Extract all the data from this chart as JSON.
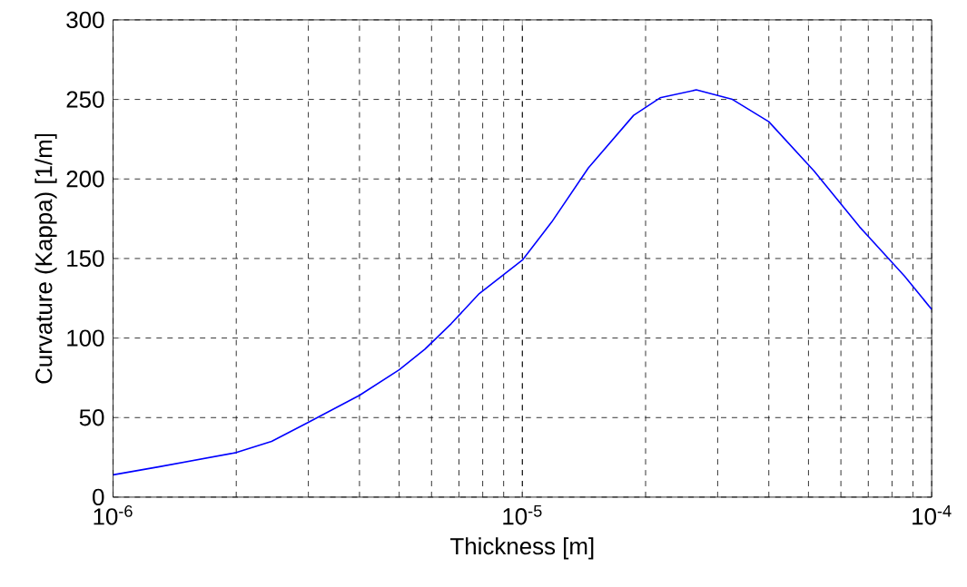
{
  "chart_data": {
    "type": "line",
    "xlabel": "Thickness [m]",
    "ylabel": "Curvature (Kappa) [1/m]",
    "x": [
      1e-06,
      1.29e-06,
      2e-06,
      2.44e-06,
      3e-06,
      4e-06,
      5e-06,
      5.78e-06,
      6.7e-06,
      7.85e-06,
      1e-05,
      1.18e-05,
      1.45e-05,
      1.87e-05,
      2.17e-05,
      2.66e-05,
      3.26e-05,
      4e-05,
      5.16e-05,
      6.66e-05,
      8.58e-05,
      0.0001
    ],
    "series": [
      {
        "color": "#0000ff",
        "values": [
          14,
          19,
          28,
          35,
          47,
          64,
          80,
          93,
          109,
          128,
          149,
          173,
          207,
          240,
          251,
          256,
          250,
          236,
          205,
          170,
          139,
          118
        ]
      }
    ],
    "log": "x",
    "xlim": [
      1e-06,
      0.0001
    ],
    "ylim": [
      0,
      300
    ],
    "xticks": [
      {
        "value": 1e-06,
        "label": "10$^{-6}$"
      },
      {
        "value": 1e-05,
        "label": "10$^{-5}$"
      },
      {
        "value": 0.0001,
        "label": "10$^{-4}$"
      }
    ],
    "yticks": [
      0,
      50,
      100,
      150,
      200,
      250,
      300
    ],
    "grid": true,
    "marker": "none",
    "line_style": "solid"
  }
}
